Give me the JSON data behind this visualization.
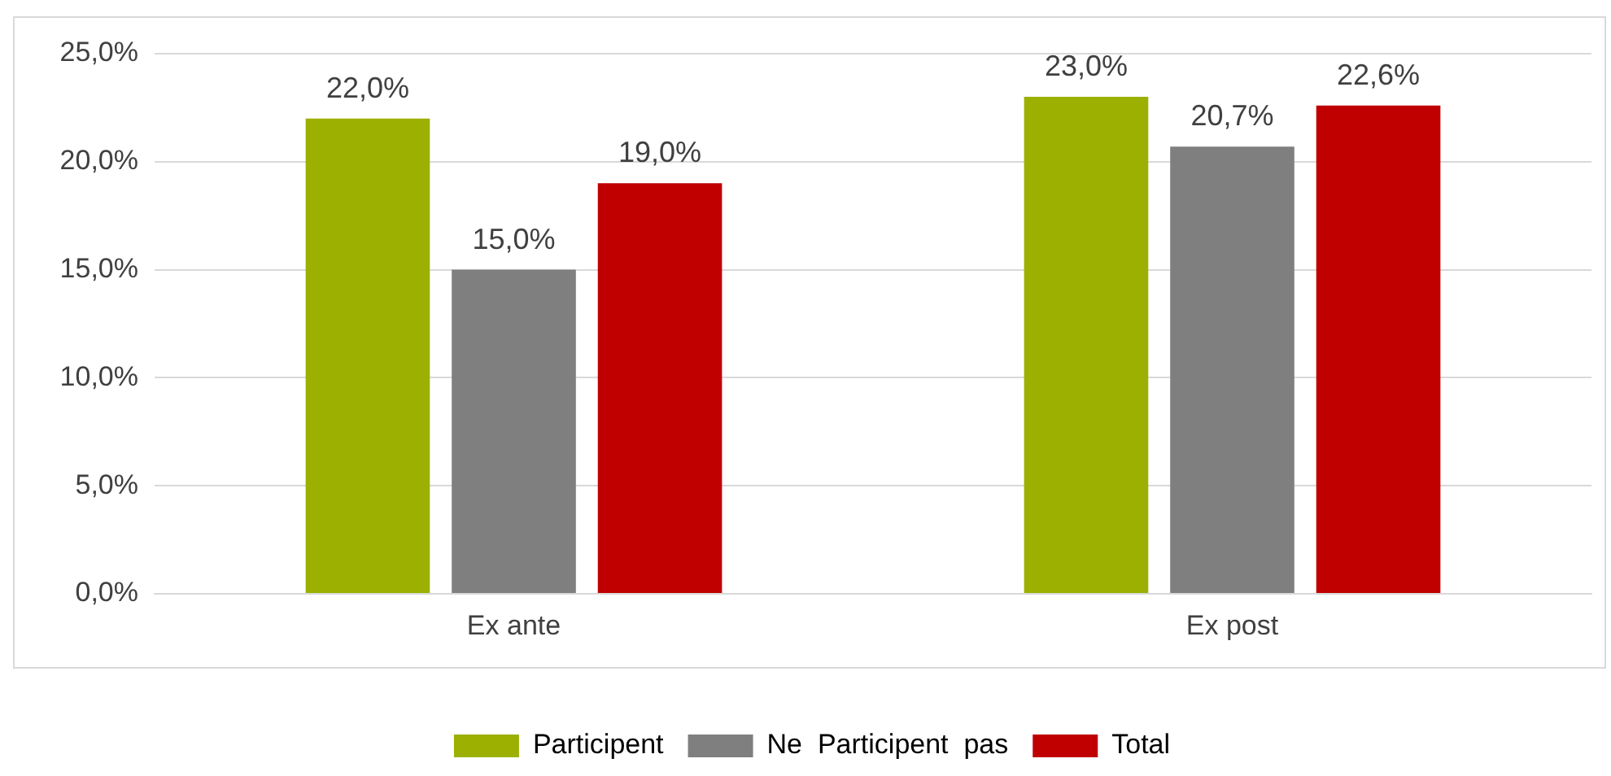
{
  "chart_data": {
    "type": "bar",
    "categories": [
      "Ex ante",
      "Ex post"
    ],
    "series": [
      {
        "name": "Participent",
        "color": "#9bb000",
        "values": [
          22.0,
          23.0
        ],
        "value_labels": [
          "22,0%",
          "23,0%"
        ]
      },
      {
        "name": "Ne  Participent  pas",
        "color": "#7f7f7f",
        "values": [
          15.0,
          20.7
        ],
        "value_labels": [
          "15,0%",
          "20,7%"
        ]
      },
      {
        "name": "Total",
        "color": "#c00000",
        "values": [
          19.0,
          22.6
        ],
        "value_labels": [
          "19,0%",
          "22,6%"
        ]
      }
    ],
    "ylim": [
      0,
      25
    ],
    "yticks": [
      {
        "value": 0,
        "label": "0,0%"
      },
      {
        "value": 5,
        "label": "5,0%"
      },
      {
        "value": 10,
        "label": "10,0%"
      },
      {
        "value": 15,
        "label": "15,0%"
      },
      {
        "value": 20,
        "label": "20,0%"
      },
      {
        "value": 25,
        "label": "25,0%"
      }
    ],
    "grid": "y",
    "legend": "bottom"
  }
}
